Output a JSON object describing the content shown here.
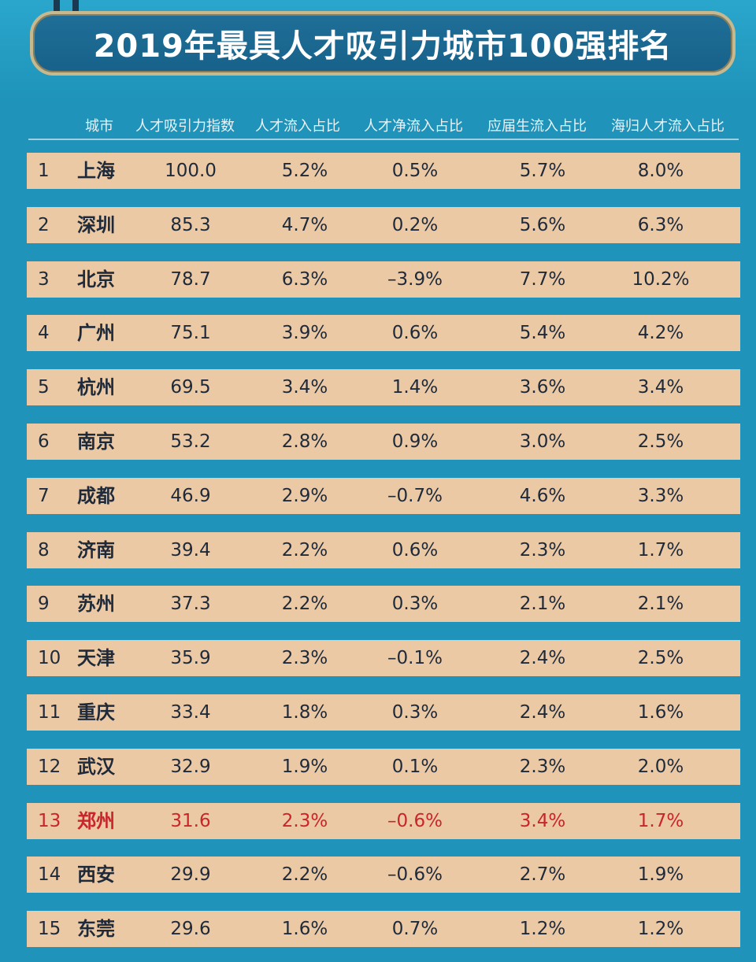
{
  "title": "2019年最具人才吸引力城市100强排名",
  "colors": {
    "background": "#1f93b9",
    "banner": "#1f6f98",
    "row": "#ecc9a5",
    "highlight_text": "#c8252c"
  },
  "chart_data": {
    "type": "table",
    "title": "2019年最具人才吸引力城市100强排名",
    "columns": [
      "城市",
      "人才吸引力指数",
      "人才流入占比",
      "人才净流入占比",
      "应届生流入占比",
      "海归人才流入占比"
    ],
    "rows": [
      {
        "rank": "1",
        "city": "上海",
        "index": "100.0",
        "inflow": "5.2%",
        "net": "0.5%",
        "grad": "5.7%",
        "returnee": "8.0%"
      },
      {
        "rank": "2",
        "city": "深圳",
        "index": "85.3",
        "inflow": "4.7%",
        "net": "0.2%",
        "grad": "5.6%",
        "returnee": "6.3%"
      },
      {
        "rank": "3",
        "city": "北京",
        "index": "78.7",
        "inflow": "6.3%",
        "net": "–3.9%",
        "grad": "7.7%",
        "returnee": "10.2%"
      },
      {
        "rank": "4",
        "city": "广州",
        "index": "75.1",
        "inflow": "3.9%",
        "net": "0.6%",
        "grad": "5.4%",
        "returnee": "4.2%"
      },
      {
        "rank": "5",
        "city": "杭州",
        "index": "69.5",
        "inflow": "3.4%",
        "net": "1.4%",
        "grad": "3.6%",
        "returnee": "3.4%"
      },
      {
        "rank": "6",
        "city": "南京",
        "index": "53.2",
        "inflow": "2.8%",
        "net": "0.9%",
        "grad": "3.0%",
        "returnee": "2.5%"
      },
      {
        "rank": "7",
        "city": "成都",
        "index": "46.9",
        "inflow": "2.9%",
        "net": "–0.7%",
        "grad": "4.6%",
        "returnee": "3.3%"
      },
      {
        "rank": "8",
        "city": "济南",
        "index": "39.4",
        "inflow": "2.2%",
        "net": "0.6%",
        "grad": "2.3%",
        "returnee": "1.7%"
      },
      {
        "rank": "9",
        "city": "苏州",
        "index": "37.3",
        "inflow": "2.2%",
        "net": "0.3%",
        "grad": "2.1%",
        "returnee": "2.1%"
      },
      {
        "rank": "10",
        "city": "天津",
        "index": "35.9",
        "inflow": "2.3%",
        "net": "–0.1%",
        "grad": "2.4%",
        "returnee": "2.5%"
      },
      {
        "rank": "11",
        "city": "重庆",
        "index": "33.4",
        "inflow": "1.8%",
        "net": "0.3%",
        "grad": "2.4%",
        "returnee": "1.6%"
      },
      {
        "rank": "12",
        "city": "武汉",
        "index": "32.9",
        "inflow": "1.9%",
        "net": "0.1%",
        "grad": "2.3%",
        "returnee": "2.0%"
      },
      {
        "rank": "13",
        "city": "郑州",
        "index": "31.6",
        "inflow": "2.3%",
        "net": "–0.6%",
        "grad": "3.4%",
        "returnee": "1.7%",
        "highlight": true
      },
      {
        "rank": "14",
        "city": "西安",
        "index": "29.9",
        "inflow": "2.2%",
        "net": "–0.6%",
        "grad": "2.7%",
        "returnee": "1.9%"
      },
      {
        "rank": "15",
        "city": "东莞",
        "index": "29.6",
        "inflow": "1.6%",
        "net": "0.7%",
        "grad": "1.2%",
        "returnee": "1.2%"
      }
    ]
  }
}
